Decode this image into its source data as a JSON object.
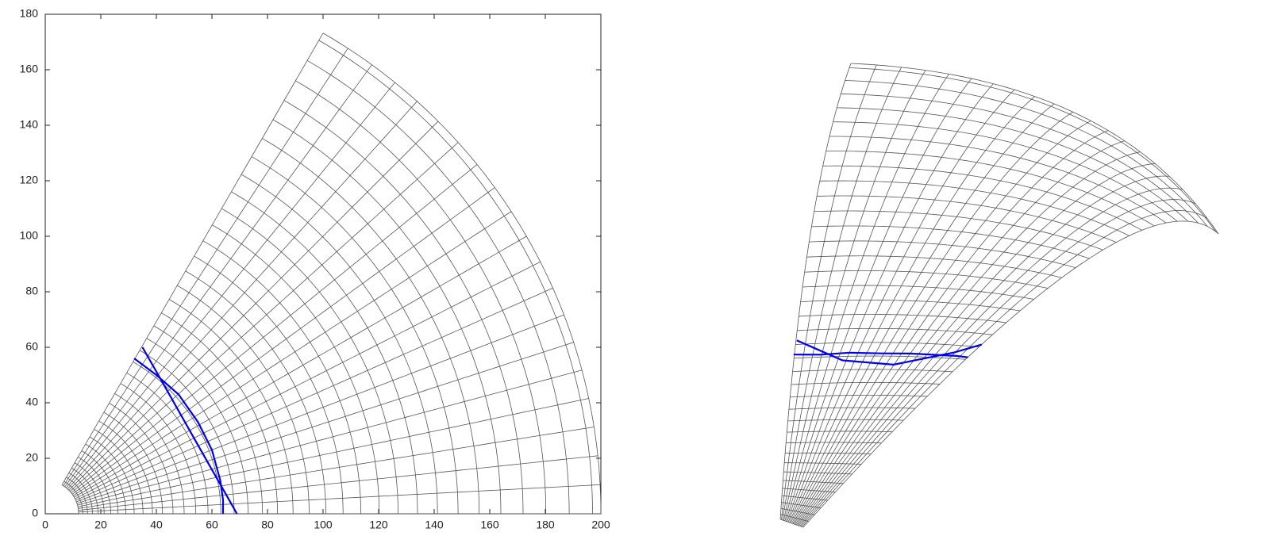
{
  "chart_data": {
    "type": "mesh",
    "xlim": [
      0,
      200
    ],
    "ylim": [
      0,
      180
    ],
    "xticks": [
      0,
      20,
      40,
      60,
      80,
      100,
      120,
      140,
      160,
      180,
      200
    ],
    "yticks": [
      0,
      20,
      40,
      60,
      80,
      100,
      120,
      140,
      160,
      180
    ],
    "mesh_color": "#555555",
    "radii": [
      12,
      13.5,
      15.2,
      17,
      19,
      21.2,
      23.6,
      26.2,
      29,
      32,
      35.2,
      38.6,
      42.2,
      46,
      50,
      54.2,
      58.6,
      63.2,
      68,
      73,
      78.2,
      83.6,
      89.2,
      95,
      101,
      107.2,
      113.6,
      120.2,
      127,
      134,
      141.2,
      148.6,
      156.2,
      164,
      172,
      180.2,
      188.6,
      197,
      200
    ],
    "angles": [
      0,
      3,
      6,
      9,
      12,
      15,
      18,
      21,
      24,
      27,
      30,
      33,
      36,
      39,
      42,
      45,
      48,
      51,
      54,
      57,
      60
    ],
    "series": [
      {
        "color": "#0000ee",
        "x": [
          32,
          40,
          48,
          55,
          60,
          63,
          64,
          64
        ],
        "y": [
          56,
          50,
          43,
          33,
          23,
          12,
          5,
          0
        ]
      },
      {
        "color": "#0000ee",
        "x": [
          35,
          45,
          55,
          65,
          69
        ],
        "y": [
          60,
          42.4,
          24.7,
          7.1,
          0
        ]
      }
    ]
  }
}
